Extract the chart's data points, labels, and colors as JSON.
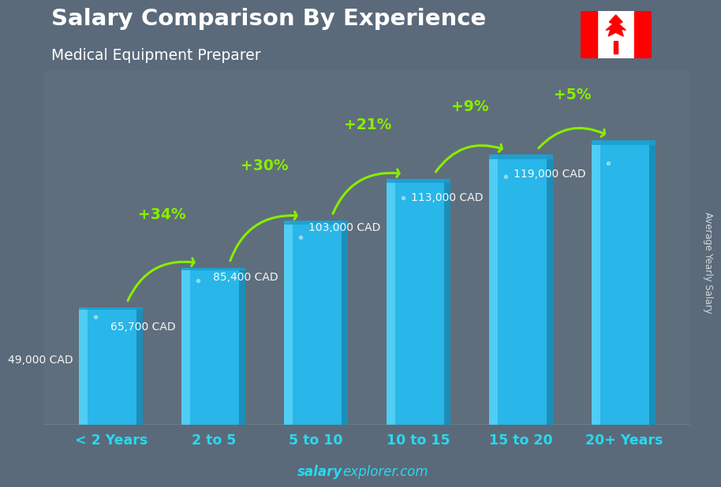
{
  "title": "Salary Comparison By Experience",
  "subtitle": "Medical Equipment Preparer",
  "categories": [
    "< 2 Years",
    "2 to 5",
    "5 to 10",
    "10 to 15",
    "15 to 20",
    "20+ Years"
  ],
  "values": [
    49000,
    65700,
    85400,
    103000,
    113000,
    119000
  ],
  "salary_labels": [
    "49,000 CAD",
    "65,700 CAD",
    "85,400 CAD",
    "103,000 CAD",
    "113,000 CAD",
    "119,000 CAD"
  ],
  "pct_changes": [
    null,
    "+34%",
    "+30%",
    "+21%",
    "+9%",
    "+5%"
  ],
  "bar_color_main": "#29b6e8",
  "bar_color_left": "#55d0f5",
  "bar_color_right": "#1a8ab5",
  "bar_color_top": "#1a9ecf",
  "pct_color": "#88ee00",
  "salary_label_color": "#ffffff",
  "title_color": "#ffffff",
  "subtitle_color": "#ffffff",
  "bg_color": "#5a6a7a",
  "footer_text_salary": "salary",
  "footer_text_explorer": "explorer",
  "footer_text_com": ".com",
  "ylabel_text": "Average Yearly Salary",
  "ylim": [
    0,
    148000
  ],
  "bar_width": 0.62,
  "xtick_color": "#29d8f0",
  "arrow_pairs": [
    [
      0,
      1,
      "+34%"
    ],
    [
      1,
      2,
      "+30%"
    ],
    [
      2,
      3,
      "+21%"
    ],
    [
      3,
      4,
      "+9%"
    ],
    [
      4,
      5,
      "+5%"
    ]
  ]
}
